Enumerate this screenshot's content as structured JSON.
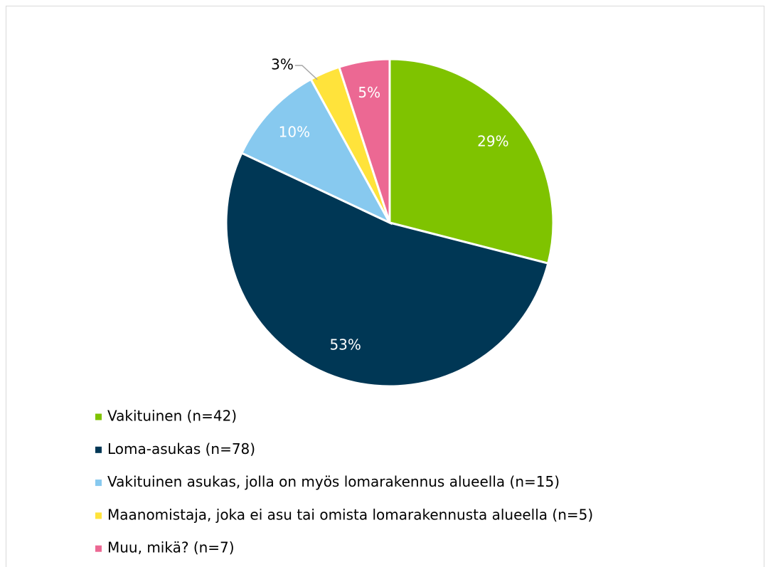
{
  "chart_data": {
    "type": "pie",
    "categories": [
      "Vakituinen (n=42)",
      "Loma-asukas  (n=78)",
      "Vakituinen asukas, jolla on myös lomarakennus alueella (n=15)",
      "Maanomistaja, joka ei asu tai omista lomarakennusta alueella (n=5)",
      "Muu, mikä? (n=7)"
    ],
    "values": [
      29,
      53,
      10,
      3,
      5
    ],
    "value_labels": [
      "29%",
      "53%",
      "10%",
      "3%",
      "5%"
    ],
    "colors": [
      "#7fc300",
      "#003755",
      "#87c9ef",
      "#ffe33b",
      "#ec6893"
    ],
    "legend": "bottom"
  }
}
